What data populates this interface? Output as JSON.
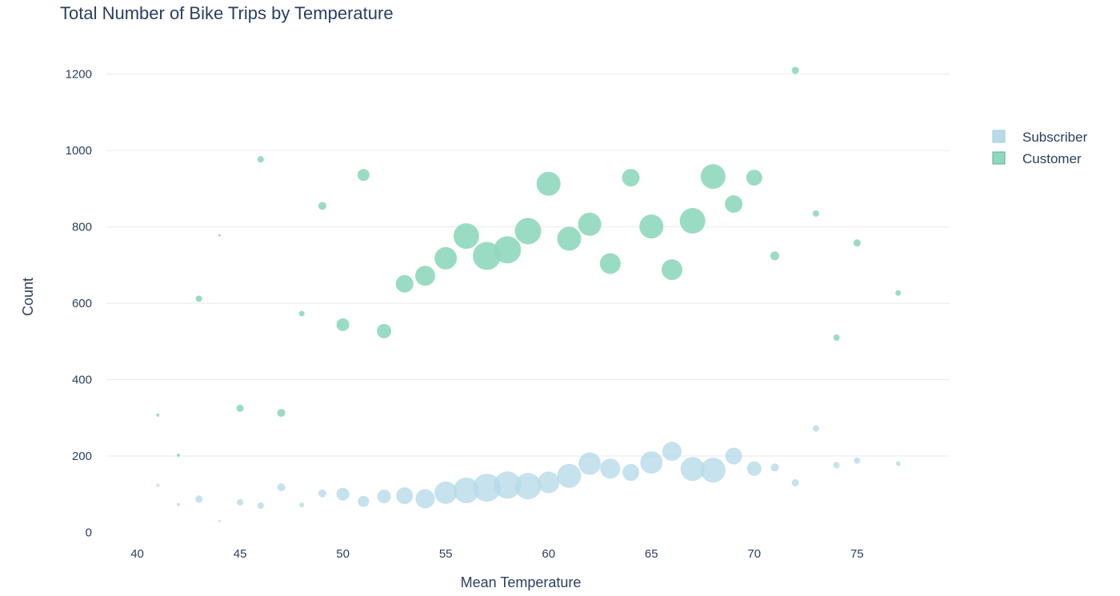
{
  "chart_data": {
    "type": "scatter",
    "title": "Total Number of Bike Trips by Temperature",
    "xlabel": "Mean Temperature",
    "ylabel": "Count",
    "xlim": [
      38.5,
      79.5
    ],
    "ylim": [
      -20,
      1300
    ],
    "x_ticks": [
      40,
      45,
      50,
      55,
      60,
      65,
      70,
      75
    ],
    "y_ticks": [
      0,
      200,
      400,
      600,
      800,
      1000,
      1200
    ],
    "grid": true,
    "legend_position": "top-right",
    "series": [
      {
        "name": "Subscriber",
        "color": "#b7dbe8",
        "x": [
          41,
          42,
          43,
          44,
          45,
          46,
          47,
          48,
          49,
          50,
          51,
          52,
          53,
          54,
          55,
          56,
          57,
          58,
          59,
          60,
          61,
          62,
          63,
          64,
          65,
          66,
          67,
          68,
          69,
          70,
          71,
          72,
          73,
          74,
          75,
          77
        ],
        "y": [
          123,
          73,
          87,
          30,
          79,
          70,
          118,
          72,
          102,
          100,
          81,
          94,
          96,
          88,
          104,
          110,
          117,
          124,
          121,
          131,
          148,
          180,
          167,
          157,
          183,
          212,
          166,
          163,
          200,
          167,
          170,
          130,
          272,
          176,
          188,
          180
        ],
        "size": [
          4,
          4,
          9,
          3,
          8,
          8,
          10,
          6,
          10,
          16,
          14,
          17,
          21,
          24,
          28,
          32,
          35,
          34,
          33,
          27,
          30,
          28,
          25,
          21,
          28,
          24,
          30,
          31,
          21,
          18,
          10,
          9,
          8,
          8,
          8,
          6
        ]
      },
      {
        "name": "Customer",
        "color": "#8fd8bd",
        "x": [
          41,
          42,
          43,
          44,
          45,
          46,
          47,
          48,
          49,
          50,
          51,
          52,
          53,
          54,
          55,
          56,
          57,
          58,
          59,
          60,
          61,
          62,
          63,
          64,
          65,
          66,
          67,
          68,
          69,
          70,
          71,
          72,
          73,
          74,
          75,
          77
        ],
        "y": [
          307,
          202,
          612,
          778,
          325,
          977,
          313,
          573,
          855,
          544,
          936,
          527,
          651,
          672,
          718,
          776,
          724,
          740,
          789,
          913,
          769,
          807,
          704,
          929,
          801,
          688,
          816,
          932,
          860,
          929,
          724,
          1210,
          835,
          510,
          758,
          627
        ],
        "size": [
          4,
          4,
          8,
          3,
          9,
          8,
          10,
          7,
          10,
          16,
          15,
          18,
          22,
          25,
          28,
          32,
          35,
          34,
          33,
          30,
          30,
          29,
          26,
          22,
          30,
          26,
          32,
          31,
          22,
          20,
          11,
          9,
          8,
          8,
          9,
          7
        ]
      }
    ]
  }
}
